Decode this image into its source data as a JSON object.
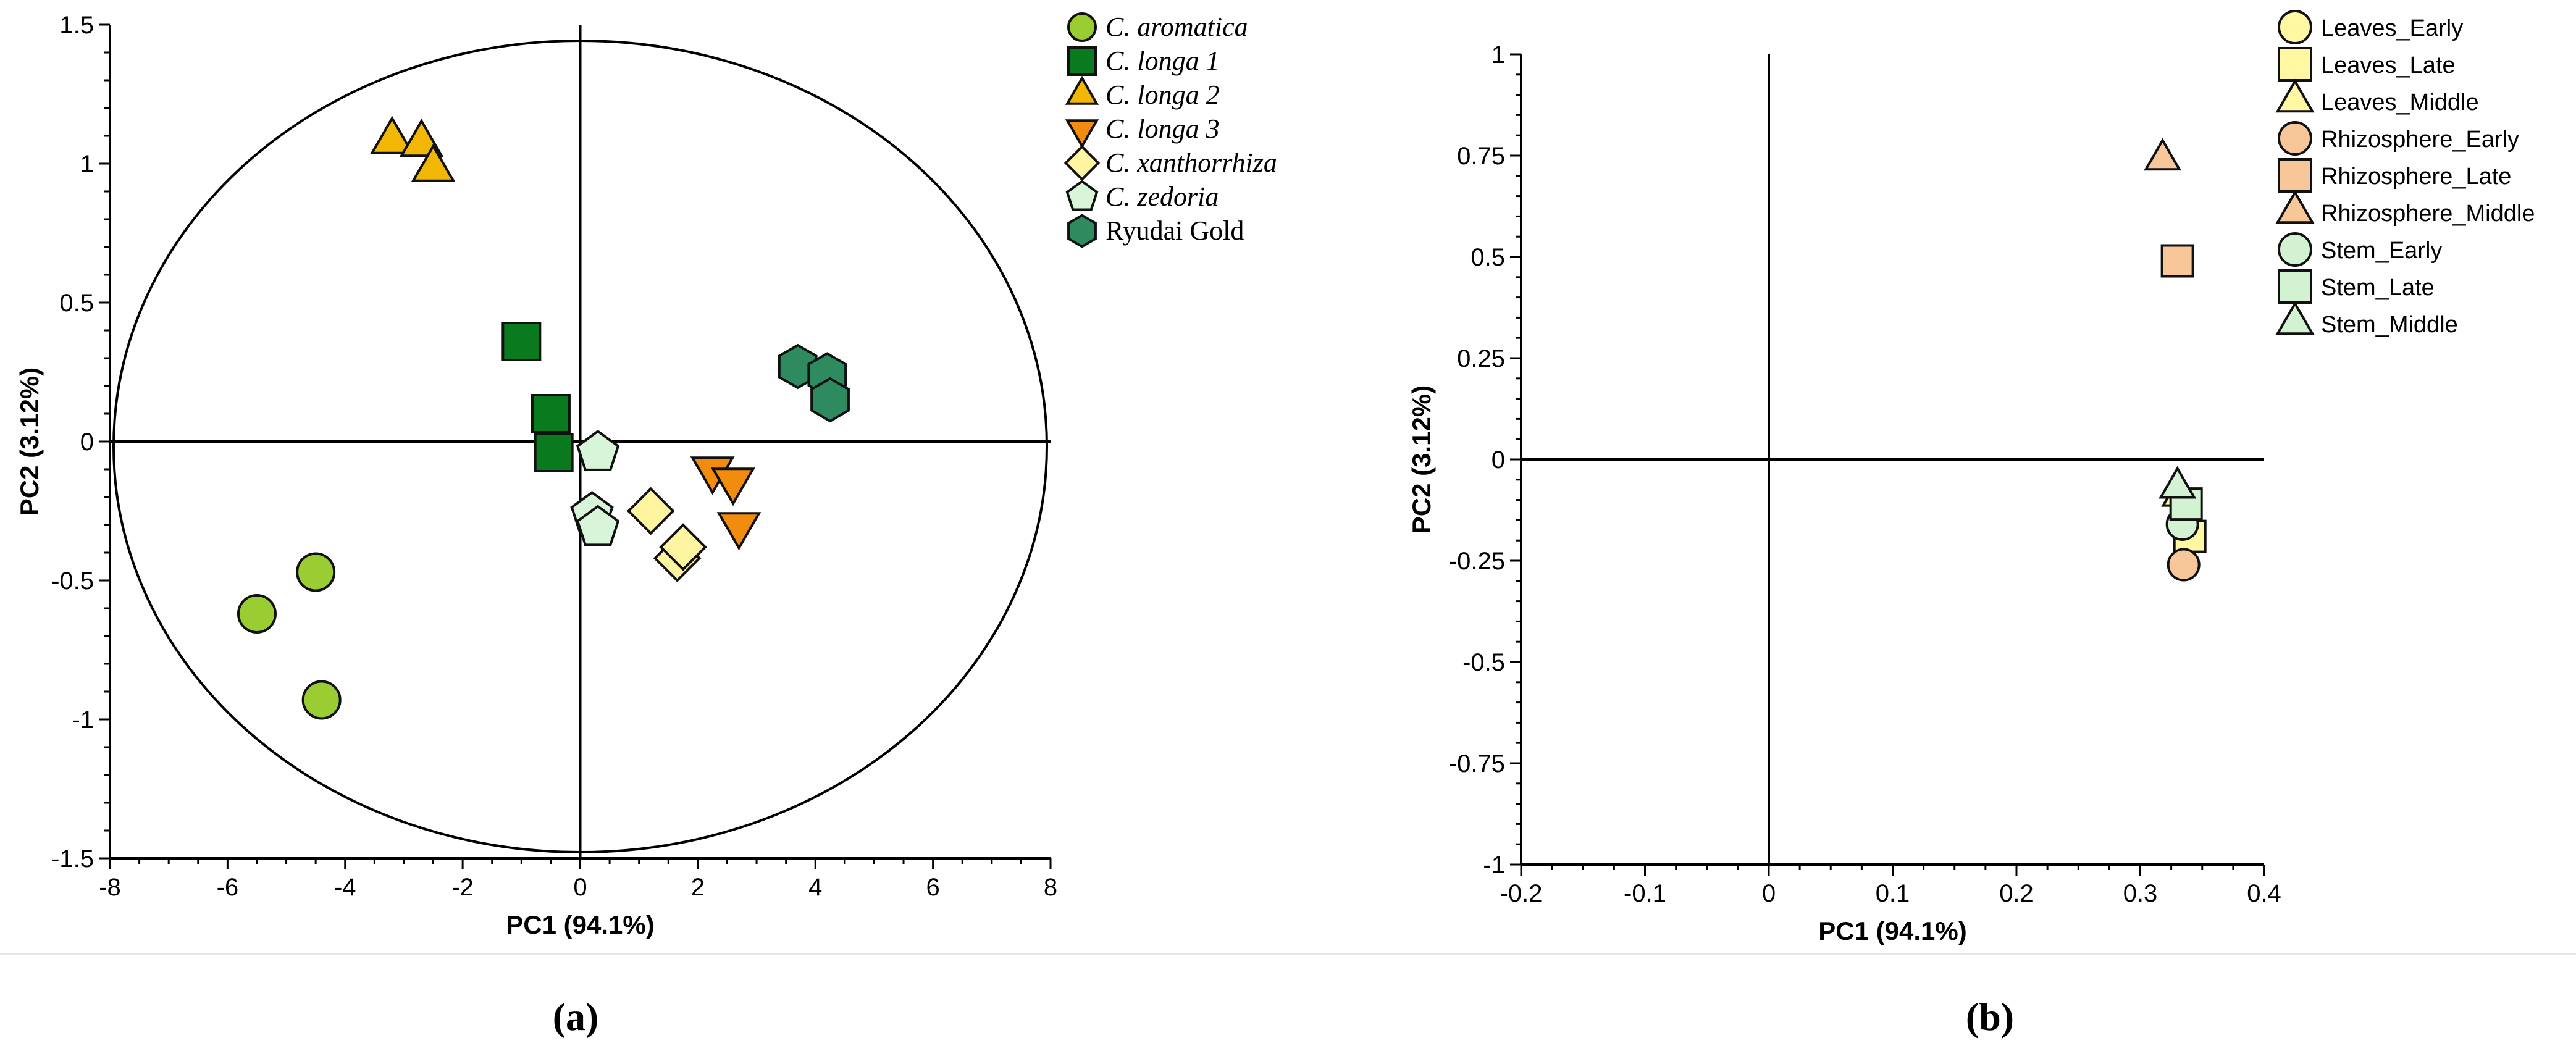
{
  "chart_data": [
    {
      "type": "scatter",
      "panel_label": "(a)",
      "xlabel": "PC1 (94.1%)",
      "ylabel": "PC2 (3.12%)",
      "xlim": [
        -8,
        8
      ],
      "ylim": [
        -1.5,
        1.5
      ],
      "xticks": [
        "-8",
        "-6",
        "-4",
        "-2",
        "0",
        "2",
        "4",
        "6",
        "8"
      ],
      "yticks": [
        "1.5",
        "1",
        "0.5",
        "0",
        "-0.5",
        "-1",
        "-1.5"
      ],
      "grid": false,
      "legend_position": "top-right",
      "confidence_ellipse": true,
      "series": [
        {
          "name": "C. aromatica",
          "italic": true,
          "marker": "circle",
          "color": "#9ACD32",
          "points": [
            [
              -4.5,
              -0.47
            ],
            [
              -5.5,
              -0.62
            ],
            [
              -4.4,
              -0.93
            ]
          ]
        },
        {
          "name": "C. longa 1",
          "italic": true,
          "marker": "square",
          "color": "#0A7A1E",
          "points": [
            [
              -1.0,
              0.36
            ],
            [
              -0.5,
              0.1
            ],
            [
              -0.45,
              -0.04
            ]
          ]
        },
        {
          "name": "C. longa 2",
          "italic": true,
          "marker": "triangle-up",
          "color": "#F2B705",
          "points": [
            [
              -3.2,
              1.08
            ],
            [
              -2.7,
              1.07
            ],
            [
              -2.5,
              0.98
            ]
          ]
        },
        {
          "name": "C. longa 3",
          "italic": true,
          "marker": "triangle-down",
          "color": "#F28C0F",
          "points": [
            [
              2.25,
              -0.1
            ],
            [
              2.6,
              -0.14
            ],
            [
              2.7,
              -0.3
            ]
          ]
        },
        {
          "name": "C. xanthorrhiza",
          "italic": true,
          "marker": "diamond",
          "color": "#FFF5A0",
          "points": [
            [
              1.2,
              -0.25
            ],
            [
              1.65,
              -0.42
            ],
            [
              1.75,
              -0.38
            ]
          ]
        },
        {
          "name": "C. zedoria",
          "italic": true,
          "marker": "pentagon",
          "color": "#D9F5D9",
          "points": [
            [
              0.3,
              -0.04
            ],
            [
              0.2,
              -0.26
            ],
            [
              0.3,
              -0.31
            ]
          ]
        },
        {
          "name": "Ryudai Gold",
          "italic": false,
          "marker": "hexagon",
          "color": "#2E8B60",
          "points": [
            [
              3.7,
              0.27
            ],
            [
              4.2,
              0.24
            ],
            [
              4.25,
              0.15
            ]
          ]
        }
      ]
    },
    {
      "type": "scatter",
      "panel_label": "(b)",
      "xlabel": "PC1 (94.1%)",
      "ylabel": "PC2 (3.12%)",
      "xlim": [
        -0.2,
        0.4
      ],
      "ylim": [
        -1,
        1
      ],
      "xticks": [
        "-0.2",
        "-0.1",
        "0",
        "0.1",
        "0.2",
        "0.3",
        "0.4"
      ],
      "yticks": [
        "1",
        "0.75",
        "0.5",
        "0.25",
        "0",
        "-0.25",
        "-0.5",
        "-0.75",
        "-1"
      ],
      "grid": false,
      "legend_position": "top-right",
      "series": [
        {
          "name": "Leaves_Early",
          "marker": "circle",
          "color": "#FFF7A1",
          "points": [
            [
              0.336,
              -0.165
            ]
          ]
        },
        {
          "name": "Leaves_Late",
          "marker": "square",
          "color": "#FFF7A1",
          "points": [
            [
              0.34,
              -0.19
            ]
          ]
        },
        {
          "name": "Leaves_Middle",
          "marker": "triangle-up",
          "color": "#FFF7A1",
          "points": [
            [
              0.332,
              -0.09
            ]
          ]
        },
        {
          "name": "Rhizosphere_Early",
          "marker": "circle",
          "color": "#F7C79A",
          "points": [
            [
              0.335,
              -0.26
            ]
          ]
        },
        {
          "name": "Rhizosphere_Late",
          "marker": "square",
          "color": "#F7C79A",
          "points": [
            [
              0.33,
              0.49
            ]
          ]
        },
        {
          "name": "Rhizosphere_Middle",
          "marker": "triangle-up",
          "color": "#F7C79A",
          "points": [
            [
              0.318,
              0.74
            ]
          ]
        },
        {
          "name": "Stem_Early",
          "marker": "circle",
          "color": "#D2F2D2",
          "points": [
            [
              0.334,
              -0.16
            ]
          ]
        },
        {
          "name": "Stem_Late",
          "marker": "square",
          "color": "#D2F2D2",
          "points": [
            [
              0.337,
              -0.11
            ]
          ]
        },
        {
          "name": "Stem_Middle",
          "marker": "triangle-up",
          "color": "#D2F2D2",
          "points": [
            [
              0.33,
              -0.07
            ]
          ]
        }
      ]
    }
  ]
}
